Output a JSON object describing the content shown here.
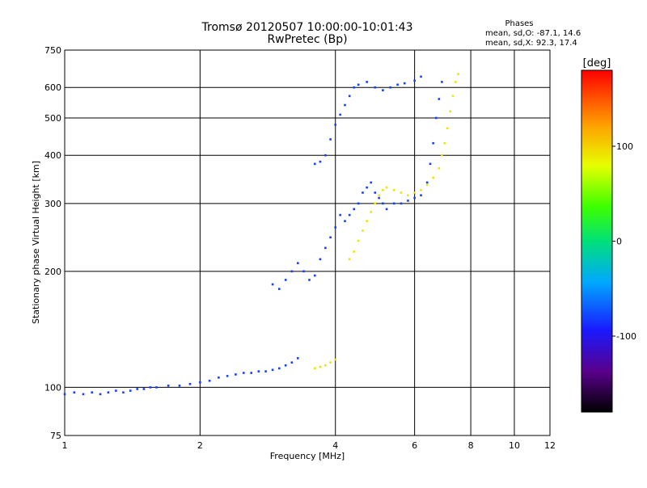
{
  "header": {
    "title_line1": "Tromsø 20120507 10:00:00-10:01:43",
    "title_line2": "RwPretec (Bp)",
    "phases_title": "Phases",
    "phases_o": "mean, sd,O:  -87.1, 14.6",
    "phases_x": "mean, sd,X:  92.3, 17.4"
  },
  "colorbar": {
    "label": "[deg]",
    "ticks": [
      {
        "value": 100,
        "label": "100"
      },
      {
        "value": 0,
        "label": "0"
      },
      {
        "value": -100,
        "label": "-100"
      }
    ],
    "range": [
      -180,
      180
    ],
    "palette": "rainbow"
  },
  "chart_data": {
    "type": "scatter",
    "xlabel": "Frequency [MHz]",
    "ylabel": "Stationary phase Virtual Height [km]",
    "xscale": "log",
    "yscale": "log",
    "xlim": [
      1,
      12
    ],
    "ylim": [
      75,
      750
    ],
    "grid": true,
    "xticks": [
      {
        "value": 1,
        "label": "1"
      },
      {
        "value": 2,
        "label": "2"
      },
      {
        "value": 4,
        "label": "4"
      },
      {
        "value": 6,
        "label": "6"
      },
      {
        "value": 8,
        "label": "8"
      },
      {
        "value": 10,
        "label": "10"
      },
      {
        "value": 12,
        "label": "12"
      }
    ],
    "yticks": [
      {
        "value": 75,
        "label": "75"
      },
      {
        "value": 100,
        "label": "100"
      },
      {
        "value": 200,
        "label": "200"
      },
      {
        "value": 300,
        "label": "300"
      },
      {
        "value": 400,
        "label": "400"
      },
      {
        "value": 500,
        "label": "500"
      },
      {
        "value": 600,
        "label": "600"
      },
      {
        "value": 750,
        "label": "750"
      }
    ],
    "series": [
      {
        "mode": "O",
        "mean_phase_deg": -87.1,
        "points": [
          [
            1.0,
            96
          ],
          [
            1.05,
            97
          ],
          [
            1.1,
            96
          ],
          [
            1.15,
            97
          ],
          [
            1.2,
            96
          ],
          [
            1.25,
            97
          ],
          [
            1.3,
            98
          ],
          [
            1.35,
            97
          ],
          [
            1.4,
            98
          ],
          [
            1.45,
            99
          ],
          [
            1.5,
            99
          ],
          [
            1.55,
            100
          ],
          [
            1.6,
            100
          ],
          [
            1.7,
            101
          ],
          [
            1.8,
            101
          ],
          [
            1.9,
            102
          ],
          [
            2.0,
            103
          ],
          [
            2.1,
            104
          ],
          [
            2.2,
            106
          ],
          [
            2.3,
            107
          ],
          [
            2.4,
            108
          ],
          [
            2.5,
            109
          ],
          [
            2.6,
            109
          ],
          [
            2.7,
            110
          ],
          [
            2.8,
            110
          ],
          [
            2.9,
            111
          ],
          [
            3.0,
            112
          ],
          [
            3.1,
            114
          ],
          [
            3.2,
            116
          ],
          [
            3.3,
            119
          ],
          [
            2.9,
            185
          ],
          [
            3.0,
            180
          ],
          [
            3.1,
            190
          ],
          [
            3.2,
            200
          ],
          [
            3.3,
            210
          ],
          [
            3.4,
            200
          ],
          [
            3.5,
            190
          ],
          [
            3.6,
            195
          ],
          [
            3.7,
            215
          ],
          [
            3.8,
            230
          ],
          [
            3.9,
            245
          ],
          [
            4.0,
            260
          ],
          [
            4.1,
            280
          ],
          [
            4.2,
            270
          ],
          [
            4.3,
            280
          ],
          [
            4.4,
            290
          ],
          [
            4.5,
            300
          ],
          [
            4.6,
            320
          ],
          [
            4.7,
            330
          ],
          [
            4.8,
            340
          ],
          [
            4.9,
            320
          ],
          [
            5.0,
            310
          ],
          [
            5.1,
            300
          ],
          [
            5.2,
            290
          ],
          [
            5.4,
            300
          ],
          [
            5.6,
            300
          ],
          [
            5.8,
            305
          ],
          [
            6.0,
            310
          ],
          [
            6.2,
            315
          ],
          [
            6.4,
            340
          ],
          [
            6.5,
            380
          ],
          [
            6.6,
            430
          ],
          [
            6.7,
            500
          ],
          [
            6.8,
            560
          ],
          [
            6.9,
            620
          ],
          [
            3.6,
            380
          ],
          [
            3.7,
            385
          ],
          [
            3.8,
            400
          ],
          [
            3.9,
            440
          ],
          [
            4.0,
            480
          ],
          [
            4.1,
            510
          ],
          [
            4.2,
            540
          ],
          [
            4.3,
            570
          ],
          [
            4.4,
            600
          ],
          [
            4.5,
            610
          ],
          [
            4.7,
            620
          ],
          [
            4.9,
            600
          ],
          [
            5.1,
            590
          ],
          [
            5.3,
            600
          ],
          [
            5.5,
            610
          ],
          [
            5.7,
            615
          ],
          [
            6.0,
            625
          ],
          [
            6.2,
            640
          ]
        ]
      },
      {
        "mode": "X",
        "mean_phase_deg": 92.3,
        "points": [
          [
            3.6,
            112
          ],
          [
            3.7,
            113
          ],
          [
            3.8,
            114
          ],
          [
            3.9,
            116
          ],
          [
            4.0,
            118
          ],
          [
            4.3,
            215
          ],
          [
            4.4,
            225
          ],
          [
            4.5,
            240
          ],
          [
            4.6,
            255
          ],
          [
            4.7,
            270
          ],
          [
            4.8,
            285
          ],
          [
            4.9,
            300
          ],
          [
            5.0,
            315
          ],
          [
            5.1,
            325
          ],
          [
            5.2,
            330
          ],
          [
            5.4,
            325
          ],
          [
            5.6,
            320
          ],
          [
            5.8,
            315
          ],
          [
            6.0,
            320
          ],
          [
            6.2,
            325
          ],
          [
            6.4,
            335
          ],
          [
            6.6,
            350
          ],
          [
            6.8,
            370
          ],
          [
            6.9,
            400
          ],
          [
            7.0,
            430
          ],
          [
            7.1,
            470
          ],
          [
            7.2,
            520
          ],
          [
            7.3,
            570
          ],
          [
            7.4,
            620
          ],
          [
            7.5,
            650
          ]
        ]
      }
    ]
  }
}
